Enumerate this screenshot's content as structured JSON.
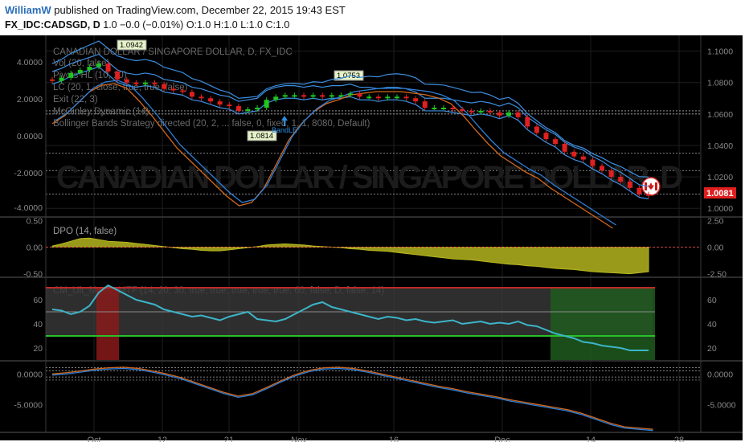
{
  "header": {
    "author": "WilliamW",
    "published_text": "published on TradingView.com, December 22, 2015 19:43 EST",
    "symbol": "FX_IDC:CADSGD, D",
    "change": "1.0 −0.0 (−0.01%)",
    "ohlc": "O:1.0 H:1.0 L:1.0 C:1.0"
  },
  "colors": {
    "background": "#000000",
    "up_candle": "#1ec81e",
    "down_candle": "#e02020",
    "band": "#3d8fe0",
    "orange": "#d2691e",
    "blue_line": "#2f7fd8",
    "dpo_fill": "#9a9a1a",
    "cm_line": "#3cb4c8",
    "price_badge": "#e01e1e"
  },
  "watermark": "CANADIAN DOLLAR / SINGAPORE DOLLAR, D",
  "main_title": "CANADIAN DOLLAR / SINGAPORE DOLLAR, D, FX_IDC",
  "legend": [
    "Vol (20, false)",
    "Pivots HL (10, 10)",
    "LC (20, 1, close, true, true, false)",
    "Exit (22, 3)",
    "McGinley Dynamic (14)",
    "Bollinger Bands Strategy directed (20, 2, ... false, 0, fixed, 1, 1, 8080, Default)"
  ],
  "pivot_labels": [
    "1.0942",
    "1.0753",
    "1.0814"
  ],
  "band_marker": "BandLE",
  "last_price": "1.0081",
  "dpo_label": "DPO (14, false)",
  "cm_label": "CM_Ult_MacD_MTF (14, 20, 30, true, true, true, true, true, 60, false, D, false, 14)",
  "chart_data": [
    {
      "type": "line",
      "name": "price",
      "x_ticks": [
        "Oct",
        "12",
        "21",
        "Nov",
        "16",
        "Dec",
        "14",
        "28"
      ],
      "ylim": [
        0.995,
        1.11
      ],
      "right_ticks": [
        "1.1000",
        "1.0800",
        "1.0600",
        "1.0400",
        "1.0200",
        "1.0000"
      ],
      "left_ticks": [
        "4.0000",
        "2.0000",
        "0.0000",
        "-2.0000",
        "-4.0000"
      ],
      "close_approx": [
        1.081,
        1.083,
        1.086,
        1.088,
        1.09,
        1.092,
        1.087,
        1.082,
        1.08,
        1.079,
        1.08,
        1.079,
        1.076,
        1.075,
        1.074,
        1.071,
        1.07,
        1.068,
        1.066,
        1.065,
        1.062,
        1.063,
        1.064,
        1.069,
        1.071,
        1.072,
        1.072,
        1.071,
        1.072,
        1.071,
        1.072,
        1.072,
        1.073,
        1.071,
        1.071,
        1.07,
        1.071,
        1.071,
        1.07,
        1.068,
        1.064,
        1.064,
        1.064,
        1.063,
        1.062,
        1.061,
        1.062,
        1.061,
        1.059,
        1.061,
        1.058,
        1.052,
        1.048,
        1.044,
        1.041,
        1.036,
        1.033,
        1.031,
        1.027,
        1.024,
        1.02,
        1.017,
        1.013,
        1.009,
        1.008
      ]
    },
    {
      "type": "area",
      "name": "DPO (14, false)",
      "ylim": [
        -0.55,
        0.55
      ],
      "ticks": [
        "0.50",
        "0.00",
        "-0.50"
      ],
      "right_ticks": [
        "2.50",
        "0.00",
        "-2.50"
      ],
      "values": [
        0.02,
        0.06,
        0.11,
        0.16,
        0.17,
        0.14,
        0.11,
        0.1,
        0.09,
        0.07,
        0.05,
        0.03,
        0.01,
        -0.01,
        -0.03,
        -0.04,
        -0.06,
        -0.07,
        -0.07,
        -0.05,
        -0.03,
        -0.01,
        0.01,
        0.04,
        0.05,
        0.06,
        0.05,
        0.04,
        0.02,
        0.01,
        0.0,
        -0.01,
        -0.03,
        -0.04,
        -0.06,
        -0.07,
        -0.08,
        -0.1,
        -0.12,
        -0.14,
        -0.16,
        -0.18,
        -0.2,
        -0.22,
        -0.23,
        -0.24,
        -0.26,
        -0.28,
        -0.3,
        -0.32,
        -0.33,
        -0.35,
        -0.36,
        -0.38,
        -0.4,
        -0.41,
        -0.42,
        -0.44,
        -0.46,
        -0.47,
        -0.48,
        -0.49,
        -0.5,
        -0.48,
        -0.46
      ]
    },
    {
      "type": "line",
      "name": "CM_Ult_MacD_MTF",
      "ylim": [
        10,
        78
      ],
      "ticks": [
        "60",
        "40",
        "20"
      ],
      "upper_band": 70,
      "lower_band": 30,
      "values": [
        52,
        51,
        48,
        50,
        55,
        66,
        72,
        68,
        64,
        60,
        58,
        56,
        52,
        50,
        48,
        46,
        47,
        45,
        43,
        46,
        48,
        50,
        44,
        43,
        42,
        44,
        48,
        52,
        56,
        58,
        54,
        52,
        50,
        48,
        46,
        44,
        46,
        45,
        43,
        44,
        42,
        41,
        42,
        43,
        40,
        41,
        42,
        40,
        41,
        40,
        42,
        39,
        38,
        35,
        32,
        30,
        28,
        25,
        24,
        22,
        21,
        20,
        18,
        18,
        18
      ]
    },
    {
      "type": "line",
      "name": "MACD",
      "ylim": [
        -9.5,
        2
      ],
      "ticks": [
        "0.0000",
        "-5.0000"
      ],
      "right_ticks": [
        "0.0000",
        "-5.0000"
      ]
    }
  ]
}
